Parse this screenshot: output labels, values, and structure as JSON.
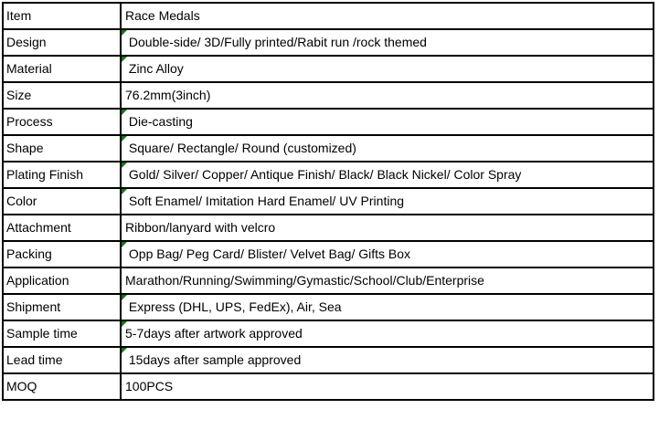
{
  "colors": {
    "border": "#000000",
    "text": "#000000",
    "flag_green": "#117c11",
    "background": "#ffffff"
  },
  "table": {
    "description": "Product specification table for race medals",
    "rows": [
      {
        "label": "Item",
        "value": "Race Medals",
        "flag": false
      },
      {
        "label": "Design",
        "value": " Double-side/ 3D/Fully printed/Rabit run /rock themed",
        "flag": true
      },
      {
        "label": "Material",
        "value": " Zinc Alloy",
        "flag": true
      },
      {
        "label": "Size",
        "value": "76.2mm(3inch)",
        "flag": false
      },
      {
        "label": "Process",
        "value": " Die-casting",
        "flag": true
      },
      {
        "label": "Shape",
        "value": " Square/ Rectangle/ Round (customized)",
        "flag": true
      },
      {
        "label": "Plating Finish",
        "value": " Gold/ Silver/ Copper/ Antique Finish/ Black/ Black Nickel/ Color Spray",
        "flag": true
      },
      {
        "label": "Color",
        "value": " Soft Enamel/ Imitation Hard Enamel/ UV Printing",
        "flag": true
      },
      {
        "label": "Attachment",
        "value": "Ribbon/lanyard with velcro",
        "flag": false
      },
      {
        "label": "Packing",
        "value": " Opp Bag/ Peg Card/ Blister/ Velvet Bag/ Gifts Box",
        "flag": true
      },
      {
        "label": "Application",
        "value": "Marathon/Running/Swimming/Gymastic/School/Club/Enterprise",
        "flag": false
      },
      {
        "label": "Shipment",
        "value": " Express (DHL, UPS, FedEx), Air, Sea",
        "flag": true
      },
      {
        "label": "Sample time",
        "value": "5-7days after artwork approved",
        "flag": true
      },
      {
        "label": "Lead time",
        "value": " 15days after sample approved",
        "flag": true
      },
      {
        "label": "MOQ",
        "value": "100PCS",
        "flag": false
      }
    ]
  }
}
